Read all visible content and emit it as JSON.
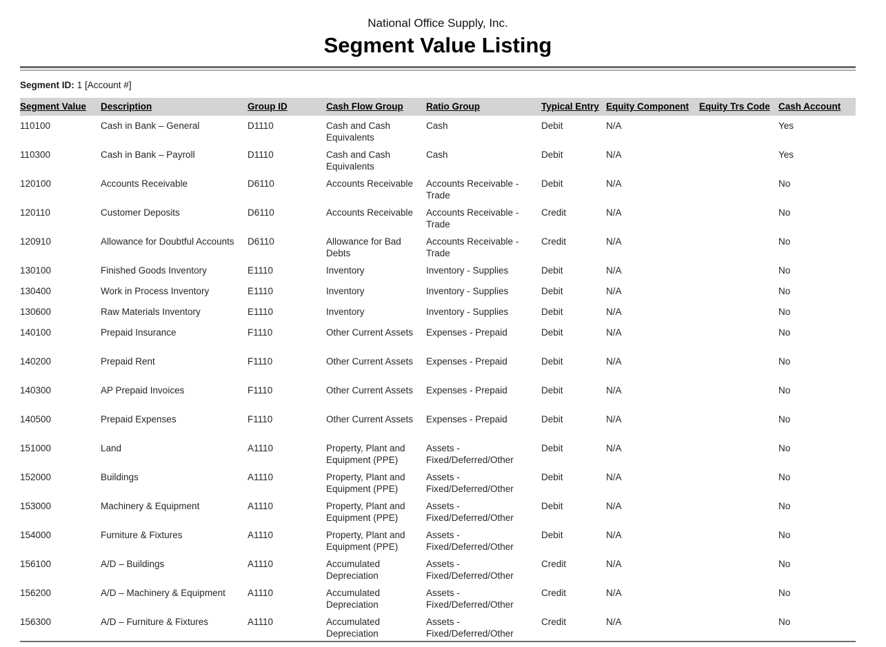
{
  "report": {
    "company_name": "National Office Supply, Inc.",
    "title": "Segment Value Listing",
    "segment_id_label": "Segment ID:",
    "segment_id_value": "1 [Account #]"
  },
  "table": {
    "columns": [
      {
        "key": "segment_value",
        "label": "Segment Value"
      },
      {
        "key": "description",
        "label": "Description"
      },
      {
        "key": "group_id",
        "label": "Group ID"
      },
      {
        "key": "cash_flow_group",
        "label": "Cash Flow Group"
      },
      {
        "key": "ratio_group",
        "label": "Ratio Group"
      },
      {
        "key": "typical_entry",
        "label": "Typical Entry"
      },
      {
        "key": "equity_component",
        "label": "Equity Component"
      },
      {
        "key": "equity_trs_code",
        "label": "Equity Trs Code"
      },
      {
        "key": "cash_account",
        "label": "Cash Account"
      }
    ],
    "rows": [
      {
        "segment_value": "110100",
        "description": "Cash in Bank – General",
        "group_id": "D1110",
        "cash_flow_group": "Cash and Cash Equivalents",
        "ratio_group": "Cash",
        "typical_entry": "Debit",
        "equity_component": "N/A",
        "equity_trs_code": "",
        "cash_account": "Yes",
        "compact": false
      },
      {
        "segment_value": "110300",
        "description": "Cash in Bank – Payroll",
        "group_id": "D1110",
        "cash_flow_group": "Cash and Cash Equivalents",
        "ratio_group": "Cash",
        "typical_entry": "Debit",
        "equity_component": "N/A",
        "equity_trs_code": "",
        "cash_account": "Yes",
        "compact": false
      },
      {
        "segment_value": "120100",
        "description": "Accounts Receivable",
        "group_id": "D6110",
        "cash_flow_group": "Accounts Receivable",
        "ratio_group": "Accounts Receivable - Trade",
        "typical_entry": "Debit",
        "equity_component": "N/A",
        "equity_trs_code": "",
        "cash_account": "No",
        "compact": false
      },
      {
        "segment_value": "120110",
        "description": "Customer Deposits",
        "group_id": "D6110",
        "cash_flow_group": "Accounts Receivable",
        "ratio_group": "Accounts Receivable - Trade",
        "typical_entry": "Credit",
        "equity_component": "N/A",
        "equity_trs_code": "",
        "cash_account": "No",
        "compact": false
      },
      {
        "segment_value": "120910",
        "description": "Allowance for Doubtful Accounts",
        "group_id": "D6110",
        "cash_flow_group": "Allowance for Bad Debts",
        "ratio_group": "Accounts Receivable - Trade",
        "typical_entry": "Credit",
        "equity_component": "N/A",
        "equity_trs_code": "",
        "cash_account": "No",
        "compact": false
      },
      {
        "segment_value": "130100",
        "description": "Finished Goods Inventory",
        "group_id": "E1110",
        "cash_flow_group": "Inventory",
        "ratio_group": "Inventory - Supplies",
        "typical_entry": "Debit",
        "equity_component": "N/A",
        "equity_trs_code": "",
        "cash_account": "No",
        "compact": true
      },
      {
        "segment_value": "130400",
        "description": "Work in Process Inventory",
        "group_id": "E1110",
        "cash_flow_group": "Inventory",
        "ratio_group": "Inventory - Supplies",
        "typical_entry": "Debit",
        "equity_component": "N/A",
        "equity_trs_code": "",
        "cash_account": "No",
        "compact": true
      },
      {
        "segment_value": "130600",
        "description": "Raw Materials Inventory",
        "group_id": "E1110",
        "cash_flow_group": "Inventory",
        "ratio_group": "Inventory - Supplies",
        "typical_entry": "Debit",
        "equity_component": "N/A",
        "equity_trs_code": "",
        "cash_account": "No",
        "compact": true
      },
      {
        "segment_value": "140100",
        "description": "Prepaid Insurance",
        "group_id": "F1110",
        "cash_flow_group": "Other Current Assets",
        "ratio_group": "Expenses - Prepaid",
        "typical_entry": "Debit",
        "equity_component": "N/A",
        "equity_trs_code": "",
        "cash_account": "No",
        "compact": false
      },
      {
        "segment_value": "140200",
        "description": "Prepaid Rent",
        "group_id": "F1110",
        "cash_flow_group": "Other Current Assets",
        "ratio_group": "Expenses - Prepaid",
        "typical_entry": "Debit",
        "equity_component": "N/A",
        "equity_trs_code": "",
        "cash_account": "No",
        "compact": false
      },
      {
        "segment_value": "140300",
        "description": "AP Prepaid Invoices",
        "group_id": "F1110",
        "cash_flow_group": "Other Current Assets",
        "ratio_group": "Expenses - Prepaid",
        "typical_entry": "Debit",
        "equity_component": "N/A",
        "equity_trs_code": "",
        "cash_account": "No",
        "compact": false
      },
      {
        "segment_value": "140500",
        "description": "Prepaid Expenses",
        "group_id": "F1110",
        "cash_flow_group": "Other Current Assets",
        "ratio_group": "Expenses - Prepaid",
        "typical_entry": "Debit",
        "equity_component": "N/A",
        "equity_trs_code": "",
        "cash_account": "No",
        "compact": false
      },
      {
        "segment_value": "151000",
        "description": "Land",
        "group_id": "A1110",
        "cash_flow_group": "Property, Plant and Equipment (PPE)",
        "ratio_group": "Assets - Fixed/Deferred/Other",
        "typical_entry": "Debit",
        "equity_component": "N/A",
        "equity_trs_code": "",
        "cash_account": "No",
        "compact": false
      },
      {
        "segment_value": "152000",
        "description": "Buildings",
        "group_id": "A1110",
        "cash_flow_group": "Property, Plant and Equipment (PPE)",
        "ratio_group": "Assets - Fixed/Deferred/Other",
        "typical_entry": "Debit",
        "equity_component": "N/A",
        "equity_trs_code": "",
        "cash_account": "No",
        "compact": false
      },
      {
        "segment_value": "153000",
        "description": "Machinery & Equipment",
        "group_id": "A1110",
        "cash_flow_group": "Property, Plant and Equipment (PPE)",
        "ratio_group": "Assets - Fixed/Deferred/Other",
        "typical_entry": "Debit",
        "equity_component": "N/A",
        "equity_trs_code": "",
        "cash_account": "No",
        "compact": false
      },
      {
        "segment_value": "154000",
        "description": "Furniture & Fixtures",
        "group_id": "A1110",
        "cash_flow_group": "Property, Plant and Equipment (PPE)",
        "ratio_group": "Assets - Fixed/Deferred/Other",
        "typical_entry": "Debit",
        "equity_component": "N/A",
        "equity_trs_code": "",
        "cash_account": "No",
        "compact": false
      },
      {
        "segment_value": "156100",
        "description": "A/D – Buildings",
        "group_id": "A1110",
        "cash_flow_group": "Accumulated Depreciation",
        "ratio_group": "Assets - Fixed/Deferred/Other",
        "typical_entry": "Credit",
        "equity_component": "N/A",
        "equity_trs_code": "",
        "cash_account": "No",
        "compact": false
      },
      {
        "segment_value": "156200",
        "description": "A/D – Machinery & Equipment",
        "group_id": "A1110",
        "cash_flow_group": "Accumulated Depreciation",
        "ratio_group": "Assets - Fixed/Deferred/Other",
        "typical_entry": "Credit",
        "equity_component": "N/A",
        "equity_trs_code": "",
        "cash_account": "No",
        "compact": false
      },
      {
        "segment_value": "156300",
        "description": "A/D – Furniture & Fixtures",
        "group_id": "A1110",
        "cash_flow_group": "Accumulated Depreciation",
        "ratio_group": "Assets - Fixed/Deferred/Other",
        "typical_entry": "Credit",
        "equity_component": "N/A",
        "equity_trs_code": "",
        "cash_account": "No",
        "compact": false
      }
    ]
  }
}
